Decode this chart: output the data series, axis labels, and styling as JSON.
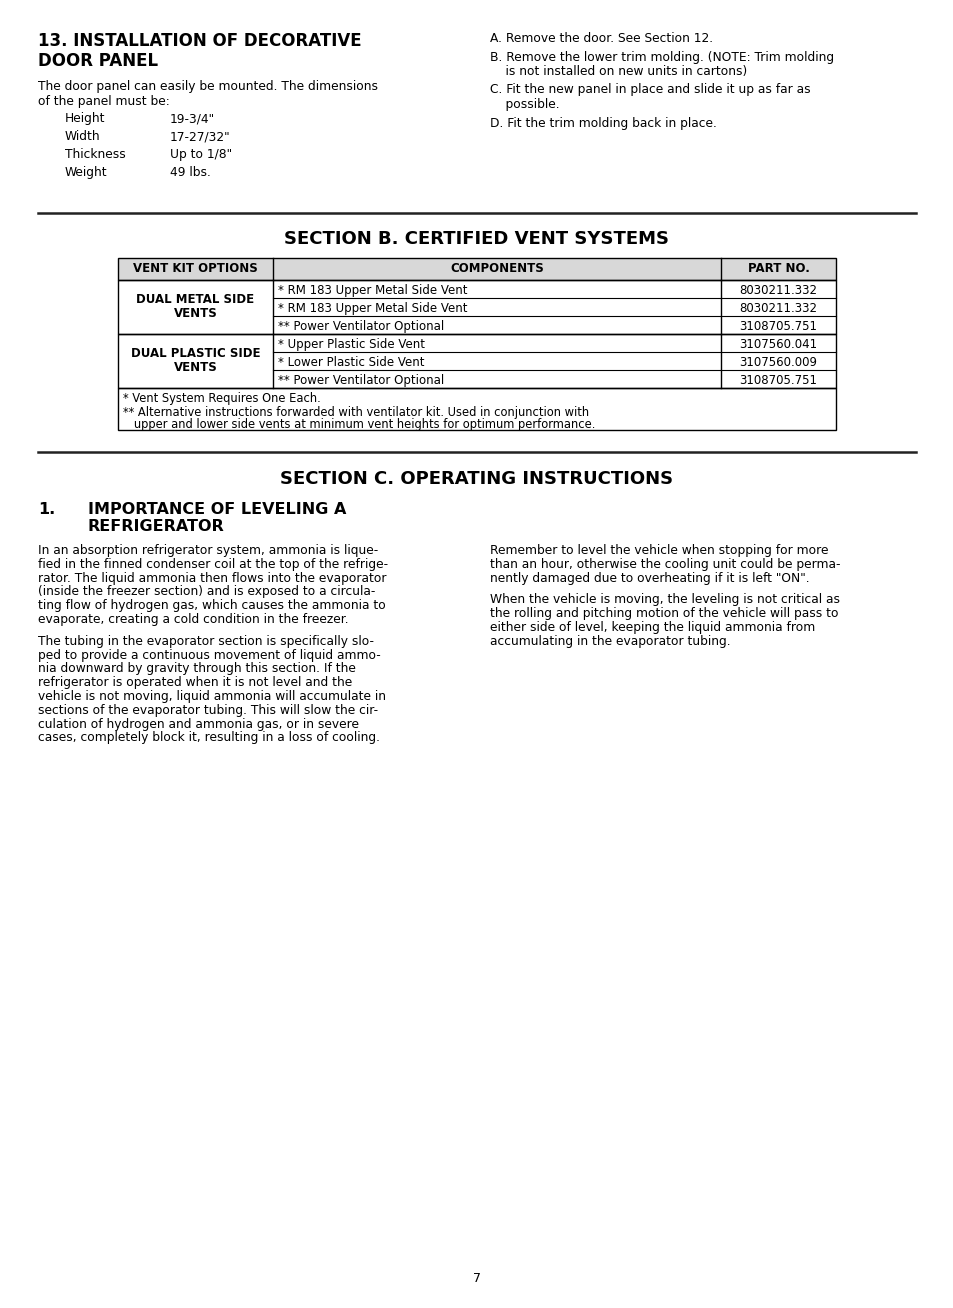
{
  "bg_color": "#ffffff",
  "section13_title_line1": "13. INSTALLATION OF DECORATIVE",
  "section13_title_line2": "DOOR PANEL",
  "section13_body": "The door panel can easily be mounted. The dimensions\nof the panel must be:",
  "specs": [
    [
      "Height",
      "19-3/4\""
    ],
    [
      "Width",
      "17-27/32\""
    ],
    [
      "Thickness",
      "Up to 1/8\""
    ],
    [
      "Weight",
      "49 lbs."
    ]
  ],
  "steps": [
    [
      "A. Remove the door. See Section 12."
    ],
    [
      "B. Remove the lower trim molding. (NOTE: Trim molding",
      "    is not installed on new units in cartons)"
    ],
    [
      "C. Fit the new panel in place and slide it up as far as",
      "    possible."
    ],
    [
      "D. Fit the trim molding back in place."
    ]
  ],
  "section_b_title": "SECTION B. CERTIFIED VENT SYSTEMS",
  "table_headers": [
    "VENT KIT OPTIONS",
    "COMPONENTS",
    "PART NO."
  ],
  "table_col1": [
    "DUAL METAL SIDE\nVENTS",
    "DUAL PLASTIC SIDE\nVENTS"
  ],
  "table_col2": [
    [
      "* RM 183 Upper Metal Side Vent",
      "* RM 183 Upper Metal Side Vent",
      "** Power Ventilator Optional"
    ],
    [
      "* Upper Plastic Side Vent",
      "* Lower Plastic Side Vent",
      "** Power Ventilator Optional"
    ]
  ],
  "table_col3": [
    [
      "8030211.332",
      "8030211.332",
      "3108705.751"
    ],
    [
      "3107560.041",
      "3107560.009",
      "3108705.751"
    ]
  ],
  "table_note1": "* Vent System Requires One Each.",
  "table_note2a": "** Alternative instructions forwarded with ventilator kit. Used in conjunction with",
  "table_note2b": "   upper and lower side vents at minimum vent heights for optimum performance.",
  "section_c_title": "SECTION C. OPERATING INSTRUCTIONS",
  "sub1_num": "1.",
  "sub1_line1": "IMPORTANCE OF LEVELING A",
  "sub1_line2": "REFRIGERATOR",
  "para1a": "In an absorption refrigerator system, ammonia is lique-",
  "para1b": "fied in the finned condenser coil at the top of the refrige-",
  "para1c": "rator. The liquid ammonia then flows into the evaporator",
  "para1d": "(inside the freezer section) and is exposed to a circula-",
  "para1e": "ting flow of hydrogen gas, which causes the ammonia to",
  "para1f": "evaporate, creating a cold condition in the freezer.",
  "para2a": "The tubing in the evaporator section is specifically slo-",
  "para2b": "ped to provide a continuous movement of liquid ammo-",
  "para2c": "nia downward by gravity through this section. If the",
  "para2d": "refrigerator is operated when it is not level and the",
  "para2e": "vehicle is not moving, liquid ammonia will accumulate in",
  "para2f": "sections of the evaporator tubing. This will slow the cir-",
  "para2g": "culation of hydrogen and ammonia gas, or in severe",
  "para2h": "cases, completely block it, resulting in a loss of cooling.",
  "para3a": "Remember to level the vehicle when stopping for more",
  "para3b": "than an hour, otherwise the cooling unit could be perma-",
  "para3c": "nently damaged due to overheating if it is left \"ON\".",
  "para4a": "When the vehicle is moving, the leveling is not critical as",
  "para4b": "the rolling and pitching motion of the vehicle will pass to",
  "para4c": "either side of level, keeping the liquid ammonia from",
  "para4d": "accumulating in the evaporator tubing.",
  "page_number": "7"
}
